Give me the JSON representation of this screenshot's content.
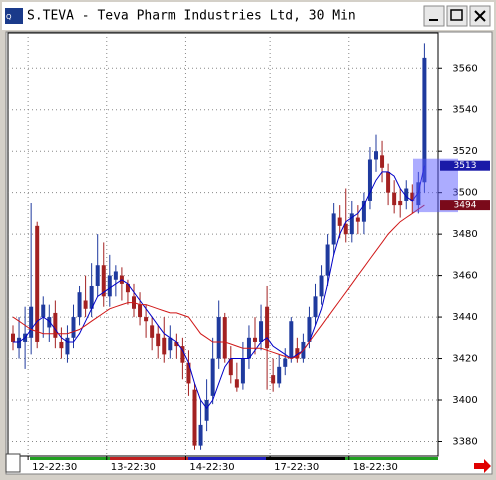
{
  "chart_data": {
    "type": "candlestick",
    "title": "S.TEVA - Teva Pharm Industries Ltd, 30 Min",
    "categories": [
      null,
      null,
      null,
      "12-22:30",
      null,
      null,
      null,
      null,
      null,
      null,
      null,
      null,
      null,
      null,
      null,
      null,
      "13-22:30",
      null,
      null,
      null,
      null,
      null,
      null,
      null,
      null,
      null,
      null,
      null,
      null,
      "14-22:30",
      null,
      null,
      null,
      null,
      null,
      null,
      null,
      null,
      null,
      null,
      null,
      null,
      null,
      "17-22:30",
      null,
      null,
      null,
      null,
      null,
      null,
      null,
      null,
      null,
      null,
      null,
      null,
      "18-22:30",
      null,
      null,
      null,
      null,
      null,
      null,
      null,
      null,
      null,
      null,
      null,
      null
    ],
    "open": [
      3432,
      3425,
      3428,
      3430,
      3484,
      3440,
      3435,
      3442,
      3428,
      3422,
      3430,
      3440,
      3448,
      3444,
      3455,
      3465,
      3450,
      3458,
      3460,
      3456,
      3450,
      3446,
      3440,
      3436,
      3432,
      3430,
      3424,
      3428,
      3426,
      3418,
      3405,
      3378,
      3390,
      3402,
      3420,
      3440,
      3420,
      3410,
      3408,
      3420,
      3430,
      3428,
      3445,
      3412,
      3408,
      3416,
      3420,
      3425,
      3420,
      3428,
      3440,
      3450,
      3460,
      3475,
      3488,
      3485,
      3480,
      3488,
      3486,
      3496,
      3516,
      3518,
      3510,
      3500,
      3496,
      3496,
      3500,
      3494,
      3505
    ],
    "high": [
      3436,
      3440,
      3445,
      3495,
      3486,
      3450,
      3446,
      3448,
      3435,
      3436,
      3446,
      3455,
      3460,
      3466,
      3480,
      3476,
      3470,
      3465,
      3464,
      3458,
      3456,
      3452,
      3446,
      3440,
      3436,
      3440,
      3436,
      3432,
      3430,
      3424,
      3408,
      3400,
      3410,
      3430,
      3448,
      3442,
      3426,
      3418,
      3428,
      3436,
      3440,
      3446,
      3455,
      3420,
      3422,
      3425,
      3440,
      3430,
      3432,
      3445,
      3456,
      3465,
      3480,
      3495,
      3494,
      3502,
      3496,
      3494,
      3500,
      3522,
      3528,
      3525,
      3514,
      3506,
      3502,
      3506,
      3504,
      3510,
      3572
    ],
    "low": [
      3424,
      3420,
      3415,
      3422,
      3425,
      3430,
      3428,
      3425,
      3420,
      3418,
      3425,
      3436,
      3440,
      3440,
      3450,
      3445,
      3445,
      3450,
      3448,
      3446,
      3440,
      3436,
      3430,
      3424,
      3420,
      3418,
      3420,
      3420,
      3410,
      3402,
      3376,
      3376,
      3385,
      3398,
      3415,
      3418,
      3408,
      3404,
      3405,
      3415,
      3422,
      3424,
      3405,
      3404,
      3406,
      3412,
      3418,
      3418,
      3418,
      3425,
      3436,
      3446,
      3455,
      3470,
      3478,
      3476,
      3476,
      3480,
      3480,
      3492,
      3510,
      3505,
      3494,
      3490,
      3488,
      3492,
      3490,
      3490,
      3500
    ],
    "close": [
      3428,
      3430,
      3432,
      3445,
      3428,
      3446,
      3440,
      3430,
      3425,
      3430,
      3440,
      3452,
      3444,
      3455,
      3465,
      3450,
      3460,
      3462,
      3456,
      3452,
      3444,
      3440,
      3438,
      3430,
      3426,
      3422,
      3430,
      3426,
      3418,
      3408,
      3378,
      3388,
      3400,
      3420,
      3440,
      3420,
      3412,
      3406,
      3420,
      3430,
      3428,
      3438,
      3425,
      3408,
      3416,
      3420,
      3438,
      3420,
      3428,
      3440,
      3450,
      3460,
      3475,
      3490,
      3484,
      3480,
      3490,
      3486,
      3496,
      3516,
      3520,
      3512,
      3500,
      3494,
      3494,
      3502,
      3496,
      3505,
      3565
    ],
    "up_color": "#1f3a9e",
    "down_color": "#a32121",
    "lines": [
      {
        "color": "#0000c8",
        "values": [
          3428,
          3428,
          3430,
          3434,
          3438,
          3440,
          3438,
          3434,
          3430,
          3428,
          3428,
          3432,
          3438,
          3444,
          3450,
          3452,
          3454,
          3456,
          3458,
          3456,
          3452,
          3448,
          3444,
          3440,
          3436,
          3432,
          3430,
          3428,
          3424,
          3418,
          3408,
          3400,
          3396,
          3400,
          3408,
          3416,
          3420,
          3420,
          3420,
          3420,
          3424,
          3428,
          3430,
          3426,
          3424,
          3422,
          3420,
          3422,
          3424,
          3428,
          3436,
          3444,
          3456,
          3470,
          3480,
          3486,
          3488,
          3490,
          3494,
          3500,
          3506,
          3510,
          3510,
          3508,
          3502,
          3498,
          3496,
          3500,
          3513
        ]
      },
      {
        "color": "#d01818",
        "values": [
          3440,
          3438,
          3436,
          3434,
          3433,
          3432,
          3432,
          3432,
          3432,
          3432,
          3433,
          3434,
          3436,
          3438,
          3440,
          3442,
          3444,
          3445,
          3446,
          3447,
          3447,
          3446,
          3446,
          3445,
          3444,
          3443,
          3442,
          3442,
          3441,
          3440,
          3436,
          3432,
          3430,
          3428,
          3428,
          3428,
          3427,
          3426,
          3425,
          3425,
          3425,
          3425,
          3424,
          3423,
          3422,
          3421,
          3420,
          3421,
          3424,
          3428,
          3432,
          3436,
          3440,
          3444,
          3448,
          3452,
          3456,
          3460,
          3464,
          3468,
          3472,
          3476,
          3480,
          3483,
          3486,
          3488,
          3490,
          3492,
          3494
        ]
      }
    ],
    "ylim": [
      3373,
      3577
    ],
    "yticks": [
      3380,
      3400,
      3420,
      3440,
      3460,
      3480,
      3500,
      3520,
      3540,
      3560
    ],
    "grid": true
  }
}
